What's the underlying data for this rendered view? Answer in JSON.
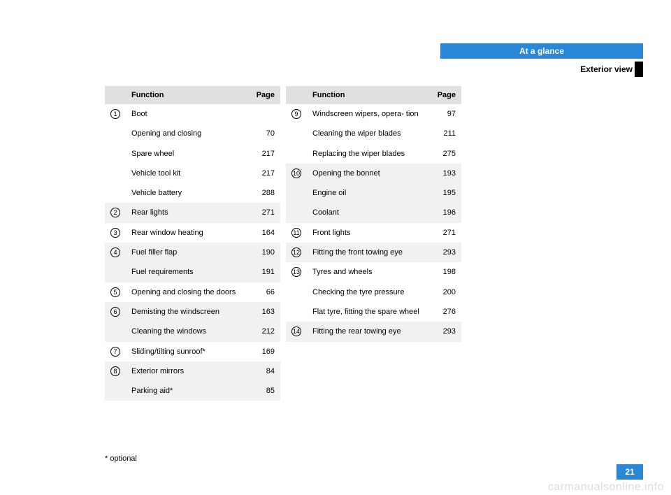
{
  "header": {
    "title": "At a glance",
    "subtitle": "Exterior view"
  },
  "headers": {
    "function": "Function",
    "page": "Page"
  },
  "left": [
    {
      "stripe": "odd",
      "num": "1",
      "label": "Boot",
      "page": ""
    },
    {
      "stripe": "odd",
      "num": "",
      "label": "Opening and closing",
      "page": "70"
    },
    {
      "stripe": "odd",
      "num": "",
      "label": "Spare wheel",
      "page": "217"
    },
    {
      "stripe": "odd",
      "num": "",
      "label": "Vehicle tool kit",
      "page": "217"
    },
    {
      "stripe": "odd",
      "num": "",
      "label": "Vehicle battery",
      "page": "288"
    },
    {
      "stripe": "even",
      "num": "2",
      "label": "Rear lights",
      "page": "271"
    },
    {
      "stripe": "odd",
      "num": "3",
      "label": "Rear window heating",
      "page": "164"
    },
    {
      "stripe": "even",
      "num": "4",
      "label": "Fuel filler flap",
      "page": "190"
    },
    {
      "stripe": "even",
      "num": "",
      "label": "Fuel requirements",
      "page": "191"
    },
    {
      "stripe": "odd",
      "num": "5",
      "label": "Opening and closing the doors",
      "page": "66"
    },
    {
      "stripe": "even",
      "num": "6",
      "label": "Demisting the windscreen",
      "page": "163"
    },
    {
      "stripe": "even",
      "num": "",
      "label": "Cleaning the windows",
      "page": "212"
    },
    {
      "stripe": "odd",
      "num": "7",
      "label": "Sliding/tilting sunroof*",
      "page": "169"
    },
    {
      "stripe": "even",
      "num": "8",
      "label": "Exterior mirrors",
      "page": "84"
    },
    {
      "stripe": "even",
      "num": "",
      "label": "Parking aid*",
      "page": "85"
    }
  ],
  "right": [
    {
      "stripe": "odd",
      "num": "9",
      "label": "Windscreen wipers, opera-\ntion",
      "page": "97"
    },
    {
      "stripe": "odd",
      "num": "",
      "label": "Cleaning the wiper blades",
      "page": "211"
    },
    {
      "stripe": "odd",
      "num": "",
      "label": "Replacing the wiper blades",
      "page": "275"
    },
    {
      "stripe": "even",
      "num": "10",
      "label": "Opening the bonnet",
      "page": "193"
    },
    {
      "stripe": "even",
      "num": "",
      "label": "Engine oil",
      "page": "195"
    },
    {
      "stripe": "even",
      "num": "",
      "label": "Coolant",
      "page": "196"
    },
    {
      "stripe": "odd",
      "num": "11",
      "label": "Front lights",
      "page": "271"
    },
    {
      "stripe": "even",
      "num": "12",
      "label": "Fitting the front towing eye",
      "page": "293"
    },
    {
      "stripe": "odd",
      "num": "13",
      "label": "Tyres and wheels",
      "page": "198"
    },
    {
      "stripe": "odd",
      "num": "",
      "label": "Checking the tyre pressure",
      "page": "200"
    },
    {
      "stripe": "odd",
      "num": "",
      "label": "Flat tyre, fitting the spare wheel",
      "page": "276"
    },
    {
      "stripe": "even",
      "num": "14",
      "label": "Fitting the rear towing eye",
      "page": "293"
    }
  ],
  "footnote": "* optional",
  "pageNumber": "21",
  "watermark": "carmanualsonline.info",
  "colors": {
    "accent": "#2b87d8",
    "stripe_even": "#f1f1f1",
    "stripe_odd": "#ffffff",
    "header_bg": "#e0e0e0"
  }
}
